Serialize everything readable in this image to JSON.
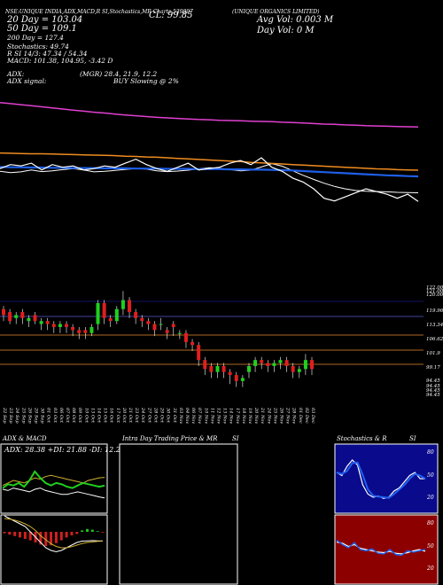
{
  "header": {
    "line1": "NSE:UNIQUE INDIA,ADX,MACD,R SI,Stochastics,MR  Charts 539997",
    "company": "(UNIQUE ORGANICS LIMITED)",
    "close_label": "CL: 99.85",
    "ma20": "20 Day = 103.04",
    "ma50": "50 Day = 109.1",
    "ma200": "200 Day = 127.4",
    "stochastics": "Stochastics: 49.74",
    "rsi": "R  SI 14/3: 47.34 / 54.34",
    "macd": "MACD: 101.38,  104.95,  -3.42  D",
    "adx": "ADX:",
    "adx_values": "(MGR) 28.4,  21.9,  12.2",
    "adx_signal": "ADX  signal:",
    "buy_slowing": "BUY Slowing @ 2%",
    "avg_vol": "Avg Vol: 0.003 M",
    "day_vol": "Day Vol: 0  M"
  },
  "colors": {
    "ma20": "#ffffff",
    "ma50": "#1e5fe8",
    "ma100": "#f08c20",
    "ma200": "#e040d0",
    "up": "#1ed21e",
    "down": "#e01e1e",
    "price_line": "#ffffff"
  },
  "chart_data": [
    {
      "type": "line",
      "title": "Moving averages",
      "series": [
        {
          "name": "20 Day",
          "values": [
            111,
            110.5,
            110.8,
            111.5,
            110.9,
            111.2,
            111.6,
            112,
            111.5,
            110.8,
            111,
            111.3,
            111.7,
            112,
            111.8,
            111.2,
            110.9,
            111.1,
            111.4,
            111.9,
            112.3,
            112.1,
            111.6,
            111.2,
            111.4,
            112.6,
            113.8,
            112.9,
            111.2,
            109.5,
            108,
            106.6,
            105.4,
            104.5,
            103.9,
            103.6,
            103.5,
            103.4,
            103.2,
            103.1,
            103.04
          ]
        },
        {
          "name": "50 Day",
          "values": [
            112.6,
            112.5,
            112.5,
            112.4,
            112.4,
            112.3,
            112.3,
            112.2,
            112.2,
            112.2,
            112.1,
            112.1,
            112.1,
            112,
            112,
            112,
            111.9,
            111.9,
            111.9,
            111.8,
            111.8,
            111.8,
            111.7,
            111.7,
            111.6,
            111.6,
            111.5,
            111.4,
            111.3,
            111.1,
            110.9,
            110.7,
            110.5,
            110.3,
            110.1,
            109.9,
            109.7,
            109.5,
            109.4,
            109.2,
            109.1
          ]
        },
        {
          "name": "100 Day",
          "values": [
            117.8,
            117.7,
            117.6,
            117.5,
            117.5,
            117.4,
            117.3,
            117.2,
            117.1,
            117,
            116.9,
            116.8,
            116.6,
            116.5,
            116.3,
            116.2,
            116,
            115.8,
            115.6,
            115.4,
            115.2,
            115,
            114.8,
            114.6,
            114.3,
            114.1,
            113.9,
            113.7,
            113.5,
            113.3,
            113.1,
            112.9,
            112.7,
            112.5,
            112.3,
            112.1,
            111.9,
            111.8,
            111.6,
            111.5,
            111.4
          ]
        },
        {
          "name": "200 Day",
          "values": [
            136.5,
            136.1,
            135.7,
            135.3,
            134.9,
            134.5,
            134.1,
            133.7,
            133.3,
            132.9,
            132.6,
            132.2,
            131.9,
            131.6,
            131.3,
            131,
            130.8,
            130.6,
            130.4,
            130.2,
            130.1,
            129.9,
            129.8,
            129.7,
            129.6,
            129.5,
            129.4,
            129.2,
            129.1,
            128.9,
            128.7,
            128.5,
            128.4,
            128.2,
            128.1,
            127.9,
            127.8,
            127.7,
            127.6,
            127.5,
            127.4
          ]
        },
        {
          "name": "Close",
          "values": [
            112,
            113.5,
            113,
            114,
            111.5,
            113.5,
            112.5,
            113,
            111.5,
            112,
            113,
            112.5,
            114,
            115.5,
            113.5,
            112,
            111,
            112.5,
            114,
            111.5,
            112,
            112.5,
            114,
            115,
            113.5,
            116,
            112.5,
            111,
            108.5,
            107,
            104.5,
            101,
            100,
            101.5,
            103,
            104.5,
            103.5,
            102.5,
            101,
            102.5,
            99.85
          ]
        }
      ],
      "ylim": [
        94,
        140
      ]
    },
    {
      "type": "bar",
      "title": "Candlesticks",
      "categories": [
        "22 Sep",
        "23 Sep",
        "24 Sep",
        "25 Sep",
        "26 Sep",
        "29 Sep",
        "30 Sep",
        "01 Oct",
        "03 Oct",
        "06 Oct",
        "07 Oct",
        "08 Oct",
        "09 Oct",
        "10 Oct",
        "13 Oct",
        "14 Oct",
        "15 Oct",
        "16 Oct",
        "17 Oct",
        "20 Oct",
        "21 Oct",
        "23 Oct",
        "24 Oct",
        "27 Oct",
        "28 Oct",
        "29 Oct",
        "30 Oct",
        "31 Oct",
        "03 Nov",
        "04 Nov",
        "06 Nov",
        "07 Nov",
        "10 Nov",
        "11 Nov",
        "12 Nov",
        "13 Nov",
        "14 Nov",
        "17 Nov",
        "18 Nov",
        "19 Nov",
        "20 Nov",
        "21 Nov",
        "24 Nov",
        "25 Nov",
        "26 Nov",
        "27 Nov",
        "28 Nov",
        "01 Dec",
        "02 Dec",
        "03 Dec"
      ],
      "series": [
        {
          "name": "open",
          "values": [
            121,
            120,
            118,
            120,
            117,
            119,
            116,
            117,
            116,
            115,
            116,
            115,
            114,
            114,
            113,
            116,
            123,
            118,
            117,
            121,
            124,
            120,
            118,
            117,
            116,
            116,
            114,
            116,
            113,
            113,
            110,
            109,
            104,
            102,
            100,
            102,
            100,
            99,
            97,
            100,
            102,
            104,
            103,
            102,
            103,
            104,
            102,
            100,
            101,
            104
          ]
        },
        {
          "name": "close",
          "values": [
            119,
            117,
            119,
            118,
            118,
            117,
            117,
            116,
            115,
            116,
            115,
            114,
            113,
            113,
            115,
            123,
            118,
            117,
            121,
            124,
            120,
            118,
            117,
            116,
            114,
            116,
            113,
            115,
            113,
            110,
            109,
            104,
            101,
            100,
            102,
            100,
            99,
            97,
            98,
            102,
            104,
            103,
            102,
            103,
            104,
            102,
            100,
            101,
            104,
            101
          ]
        },
        {
          "name": "high",
          "values": [
            122,
            121,
            120,
            121,
            119,
            120,
            118,
            118,
            117,
            117,
            117,
            116,
            115,
            115,
            116,
            124,
            124,
            119,
            122,
            127,
            125,
            121,
            119,
            118,
            117,
            118,
            115,
            117,
            114,
            114,
            111,
            110,
            105,
            103,
            103,
            103,
            101,
            100,
            99,
            103,
            105,
            105,
            104,
            104,
            105,
            105,
            103,
            102,
            106,
            105
          ]
        },
        {
          "name": "low",
          "values": [
            117,
            116,
            116,
            116,
            115,
            116,
            114,
            114,
            113,
            113,
            113,
            112,
            111,
            111,
            112,
            114,
            116,
            115,
            116,
            119,
            118,
            116,
            115,
            114,
            112,
            114,
            111,
            112,
            111,
            108,
            107,
            102,
            99,
            98,
            98,
            98,
            96,
            95,
            95,
            98,
            100,
            101,
            100,
            100,
            101,
            100,
            98,
            98,
            99,
            99
          ]
        }
      ],
      "yticks": [
        "122.00",
        "121.00",
        "120.00",
        "119.96",
        "113.34",
        "106.62",
        "101.9",
        "99.17",
        "94.45",
        "94.45",
        "94.45",
        "94.45"
      ]
    },
    {
      "type": "line",
      "title": "ADX  & MACD",
      "series": [
        {
          "name": "ADX",
          "values": [
            22,
            24,
            26,
            25,
            24,
            26,
            28,
            27,
            29,
            30,
            29,
            28,
            27,
            26,
            25,
            24,
            26,
            27,
            28,
            28.38
          ]
        },
        {
          "name": "+DI",
          "values": [
            20,
            23,
            22,
            24,
            21,
            26,
            33,
            28,
            24,
            22,
            24,
            23,
            21,
            20,
            22,
            24,
            23,
            22,
            21,
            21.88
          ]
        },
        {
          "name": "-DI",
          "values": [
            19,
            18,
            20,
            19,
            18,
            17,
            19,
            20,
            18,
            17,
            16,
            15,
            15,
            16,
            17,
            16,
            15,
            14,
            13,
            12.22
          ]
        }
      ]
    },
    {
      "type": "line",
      "title": "Stochastics & R SI",
      "series": [
        {
          "name": "Stochastics",
          "values": [
            60,
            55,
            70,
            80,
            72,
            40,
            25,
            20,
            22,
            18,
            20,
            30,
            35,
            45,
            55,
            60,
            50,
            49.74
          ]
        },
        {
          "name": "RSI",
          "values": [
            62,
            60,
            55,
            58,
            52,
            50,
            48,
            46,
            45,
            47,
            44,
            43,
            45,
            48,
            50,
            47.34
          ]
        }
      ]
    }
  ],
  "x_labels": [
    "22 Sep",
    "23 Sep",
    "24 Sep",
    "25 Sep",
    "26 Sep",
    "29 Sep",
    "30 Sep",
    "01 Oct",
    "03 Oct",
    "06 Oct",
    "07 Oct",
    "08 Oct",
    "09 Oct",
    "10 Oct",
    "13 Oct",
    "14 Oct",
    "15 Oct",
    "16 Oct",
    "17 Oct",
    "20 Oct",
    "21 Oct",
    "23 Oct",
    "24 Oct",
    "27 Oct",
    "28 Oct",
    "29 Oct",
    "30 Oct",
    "31 Oct",
    "03 Nov",
    "04 Nov",
    "06 Nov",
    "07 Nov",
    "10 Nov",
    "11 Nov",
    "12 Nov",
    "13 Nov",
    "14 Nov",
    "17 Nov",
    "18 Nov",
    "19 Nov",
    "20 Nov",
    "21 Nov",
    "24 Nov",
    "25 Nov",
    "26 Nov",
    "27 Nov",
    "28 Nov",
    "01 Dec",
    "02 Dec",
    "03 Dec"
  ],
  "panels": {
    "adx_title": "ADX  & MACD",
    "adx_readout": "ADX: 28.38   +DI: 21.88   -DI: 12.22",
    "intra_title": "Intra  Day Trading Price  & MR",
    "intra_si": "SI",
    "stoch_title": "Stochastics & R",
    "stoch_si": "SI",
    "stoch_ticks": [
      "80",
      "50",
      "20"
    ],
    "rsi_ticks": [
      "80",
      "50",
      "20"
    ]
  }
}
